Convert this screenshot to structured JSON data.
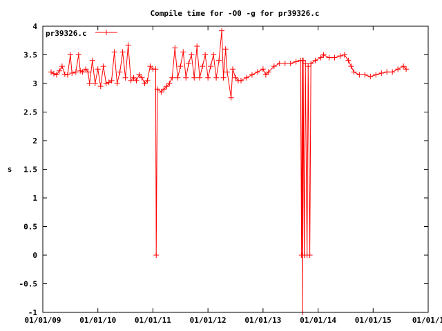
{
  "chart_data": {
    "type": "line",
    "title": "Compile time for -O0 -g for pr39326.c",
    "xlabel": "",
    "ylabel": "s",
    "x_is_date": true,
    "xlim": [
      2009.0,
      2016.0
    ],
    "ylim": [
      -1,
      4
    ],
    "xticks": [
      {
        "v": 2009,
        "label": "01/01/09"
      },
      {
        "v": 2010,
        "label": "01/01/10"
      },
      {
        "v": 2011,
        "label": "01/01/11"
      },
      {
        "v": 2012,
        "label": "01/01/12"
      },
      {
        "v": 2013,
        "label": "01/01/13"
      },
      {
        "v": 2014,
        "label": "01/01/14"
      },
      {
        "v": 2015,
        "label": "01/01/15"
      },
      {
        "v": 2016,
        "label": "01/01/1"
      }
    ],
    "yticks": [
      {
        "v": 4,
        "label": "4"
      },
      {
        "v": 3.5,
        "label": "3.5"
      },
      {
        "v": 3,
        "label": "3"
      },
      {
        "v": 2.5,
        "label": "2.5"
      },
      {
        "v": 2,
        "label": "2"
      },
      {
        "v": 1.5,
        "label": "1.5"
      },
      {
        "v": 1,
        "label": "1"
      },
      {
        "v": 0.5,
        "label": "0.5"
      },
      {
        "v": 0,
        "label": "0"
      },
      {
        "v": -0.5,
        "label": "-0.5"
      },
      {
        "v": -1,
        "label": "-1"
      }
    ],
    "legend": {
      "position": "top-left"
    },
    "series": [
      {
        "name": "pr39326.c",
        "color": "#ff0000",
        "points": [
          [
            2009.15,
            3.2
          ],
          [
            2009.2,
            3.17
          ],
          [
            2009.25,
            3.15
          ],
          [
            2009.3,
            3.22
          ],
          [
            2009.35,
            3.3
          ],
          [
            2009.4,
            3.16
          ],
          [
            2009.45,
            3.15
          ],
          [
            2009.5,
            3.5
          ],
          [
            2009.53,
            3.18
          ],
          [
            2009.6,
            3.2
          ],
          [
            2009.65,
            3.5
          ],
          [
            2009.68,
            3.22
          ],
          [
            2009.72,
            3.2
          ],
          [
            2009.78,
            3.25
          ],
          [
            2009.82,
            3.2
          ],
          [
            2009.85,
            3.0
          ],
          [
            2009.9,
            3.4
          ],
          [
            2009.95,
            3.0
          ],
          [
            2010.0,
            3.25
          ],
          [
            2010.05,
            2.95
          ],
          [
            2010.1,
            3.3
          ],
          [
            2010.15,
            3.0
          ],
          [
            2010.2,
            3.02
          ],
          [
            2010.25,
            3.05
          ],
          [
            2010.3,
            3.55
          ],
          [
            2010.35,
            3.0
          ],
          [
            2010.4,
            3.2
          ],
          [
            2010.45,
            3.55
          ],
          [
            2010.5,
            3.1
          ],
          [
            2010.55,
            3.67
          ],
          [
            2010.6,
            3.05
          ],
          [
            2010.65,
            3.1
          ],
          [
            2010.7,
            3.05
          ],
          [
            2010.75,
            3.15
          ],
          [
            2010.8,
            3.1
          ],
          [
            2010.85,
            3.0
          ],
          [
            2010.9,
            3.05
          ],
          [
            2010.95,
            3.3
          ],
          [
            2011.0,
            3.25
          ],
          [
            2011.05,
            3.25
          ],
          [
            2011.06,
            0
          ],
          [
            2011.08,
            2.9
          ],
          [
            2011.15,
            2.85
          ],
          [
            2011.2,
            2.9
          ],
          [
            2011.25,
            2.95
          ],
          [
            2011.3,
            3.0
          ],
          [
            2011.35,
            3.1
          ],
          [
            2011.4,
            3.62
          ],
          [
            2011.45,
            3.1
          ],
          [
            2011.5,
            3.3
          ],
          [
            2011.55,
            3.55
          ],
          [
            2011.6,
            3.1
          ],
          [
            2011.65,
            3.35
          ],
          [
            2011.7,
            3.5
          ],
          [
            2011.75,
            3.1
          ],
          [
            2011.8,
            3.65
          ],
          [
            2011.85,
            3.1
          ],
          [
            2011.9,
            3.3
          ],
          [
            2011.95,
            3.5
          ],
          [
            2012.0,
            3.1
          ],
          [
            2012.05,
            3.3
          ],
          [
            2012.1,
            3.5
          ],
          [
            2012.15,
            3.1
          ],
          [
            2012.2,
            3.4
          ],
          [
            2012.25,
            3.92
          ],
          [
            2012.28,
            3.1
          ],
          [
            2012.32,
            3.6
          ],
          [
            2012.35,
            3.2
          ],
          [
            2012.42,
            2.75
          ],
          [
            2012.45,
            3.25
          ],
          [
            2012.5,
            3.1
          ],
          [
            2012.55,
            3.05
          ],
          [
            2012.6,
            3.05
          ],
          [
            2012.7,
            3.1
          ],
          [
            2012.8,
            3.15
          ],
          [
            2012.9,
            3.2
          ],
          [
            2013.0,
            3.25
          ],
          [
            2013.05,
            3.15
          ],
          [
            2013.1,
            3.2
          ],
          [
            2013.2,
            3.3
          ],
          [
            2013.3,
            3.35
          ],
          [
            2013.4,
            3.35
          ],
          [
            2013.5,
            3.35
          ],
          [
            2013.6,
            3.38
          ],
          [
            2013.68,
            3.4
          ],
          [
            2013.7,
            0
          ],
          [
            2013.71,
            3.4
          ],
          [
            2013.72,
            -1
          ],
          [
            2013.73,
            3.4
          ],
          [
            2013.75,
            0
          ],
          [
            2013.77,
            3.35
          ],
          [
            2013.8,
            0
          ],
          [
            2013.82,
            3.3
          ],
          [
            2013.85,
            0
          ],
          [
            2013.87,
            3.35
          ],
          [
            2013.95,
            3.4
          ],
          [
            2014.05,
            3.45
          ],
          [
            2014.1,
            3.5
          ],
          [
            2014.2,
            3.45
          ],
          [
            2014.3,
            3.45
          ],
          [
            2014.4,
            3.48
          ],
          [
            2014.48,
            3.5
          ],
          [
            2014.55,
            3.4
          ],
          [
            2014.6,
            3.3
          ],
          [
            2014.65,
            3.2
          ],
          [
            2014.75,
            3.15
          ],
          [
            2014.85,
            3.15
          ],
          [
            2014.95,
            3.12
          ],
          [
            2015.05,
            3.15
          ],
          [
            2015.15,
            3.18
          ],
          [
            2015.25,
            3.2
          ],
          [
            2015.35,
            3.2
          ],
          [
            2015.45,
            3.25
          ],
          [
            2015.55,
            3.3
          ],
          [
            2015.6,
            3.25
          ]
        ]
      }
    ]
  }
}
